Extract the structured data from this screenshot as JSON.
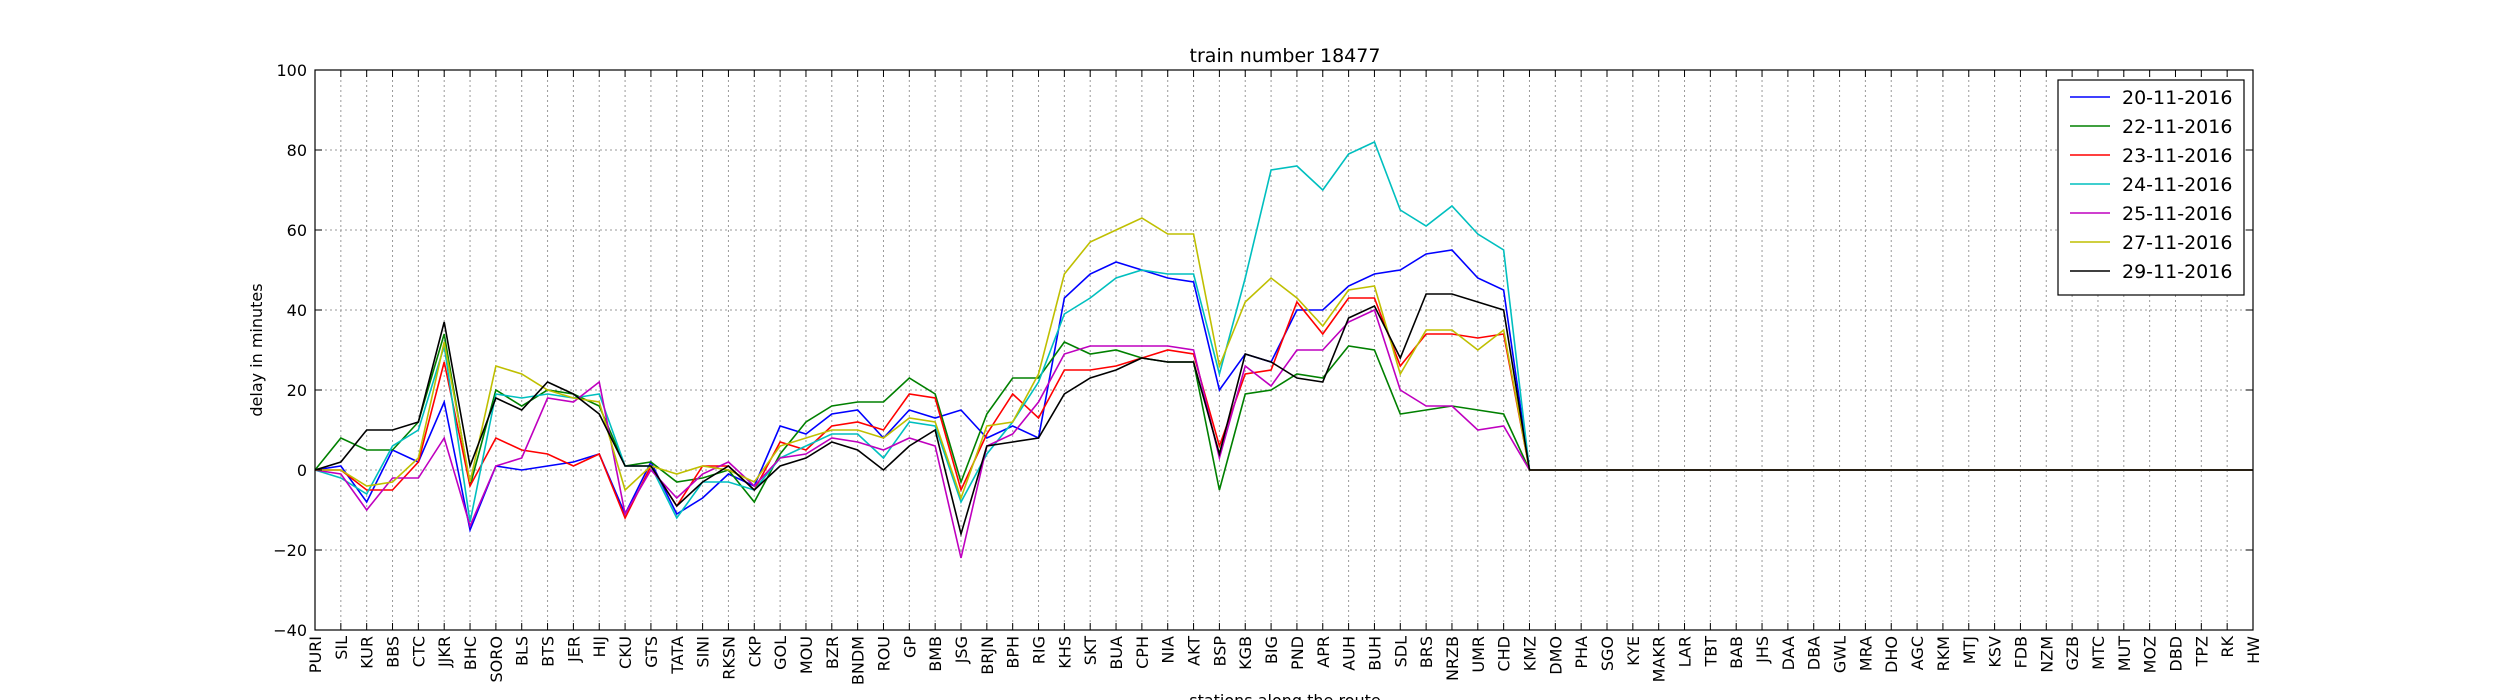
{
  "chart_data": {
    "type": "line",
    "title": "train number 18477",
    "xlabel": "stations along the route",
    "ylabel": "delay in minutes",
    "ylim": [
      -40,
      100
    ],
    "yticks": [
      -40,
      -20,
      0,
      20,
      40,
      60,
      80,
      100
    ],
    "grid": true,
    "legend_position": "top-right",
    "categories": [
      "PURI",
      "SIL",
      "KUR",
      "BBS",
      "CTC",
      "JJKR",
      "BHC",
      "SORO",
      "BLS",
      "BTS",
      "JER",
      "HIJ",
      "CKU",
      "GTS",
      "TATA",
      "SINI",
      "RKSN",
      "CKP",
      "GOL",
      "MOU",
      "BZR",
      "BNDM",
      "ROU",
      "GP",
      "BMB",
      "JSG",
      "BRJN",
      "BPH",
      "RIG",
      "KHS",
      "SKT",
      "BUA",
      "CPH",
      "NIA",
      "AKT",
      "BSP",
      "KGB",
      "BIG",
      "PND",
      "APR",
      "AUH",
      "BUH",
      "SDL",
      "BRS",
      "NRZB",
      "UMR",
      "CHD",
      "KMZ",
      "DMO",
      "PHA",
      "SGO",
      "KYE",
      "MAKR",
      "LAR",
      "TBT",
      "BAB",
      "JHS",
      "DAA",
      "DBA",
      "GWL",
      "MRA",
      "DHO",
      "AGC",
      "RKM",
      "MTJ",
      "KSV",
      "FDB",
      "NZM",
      "GZB",
      "MTC",
      "MUT",
      "MOZ",
      "DBD",
      "TPZ",
      "RK",
      "HW"
    ],
    "series": [
      {
        "name": "20-11-2016",
        "color": "#0000ff",
        "values": [
          0,
          1,
          -8,
          5,
          2,
          17,
          -15,
          1,
          0,
          1,
          2,
          4,
          -11,
          2,
          -11,
          -7,
          -1,
          -4,
          11,
          9,
          14,
          15,
          8,
          15,
          13,
          15,
          8,
          11,
          8,
          43,
          49,
          52,
          50,
          48,
          47,
          20,
          29,
          27,
          40,
          40,
          46,
          49,
          50,
          54,
          55,
          48,
          45,
          0,
          0,
          0,
          0,
          0,
          0,
          0,
          0,
          0,
          0,
          0,
          0,
          0,
          0,
          0,
          0,
          0,
          0,
          0,
          0,
          0,
          0,
          0,
          0,
          0,
          0,
          0,
          0,
          0
        ]
      },
      {
        "name": "22-11-2016",
        "color": "#008000",
        "values": [
          0,
          8,
          5,
          5,
          12,
          34,
          -4,
          20,
          16,
          20,
          19,
          16,
          1,
          2,
          -3,
          -2,
          0,
          -8,
          4,
          12,
          16,
          17,
          17,
          23,
          19,
          -3,
          14,
          23,
          23,
          32,
          29,
          30,
          28,
          27,
          27,
          -5,
          19,
          20,
          24,
          23,
          31,
          30,
          14,
          15,
          16,
          15,
          14,
          0,
          0,
          0,
          0,
          0,
          0,
          0,
          0,
          0,
          0,
          0,
          0,
          0,
          0,
          0,
          0,
          0,
          0,
          0,
          0,
          0,
          0,
          0,
          0,
          0,
          0,
          0,
          0,
          0
        ]
      },
      {
        "name": "23-11-2016",
        "color": "#ff0000",
        "values": [
          0,
          0,
          -5,
          -5,
          2,
          27,
          -4,
          8,
          5,
          4,
          1,
          4,
          -12,
          1,
          -9,
          1,
          1,
          -5,
          7,
          5,
          11,
          12,
          10,
          19,
          18,
          -5,
          9,
          19,
          13,
          25,
          25,
          26,
          28,
          30,
          29,
          6,
          24,
          25,
          42,
          34,
          43,
          43,
          26,
          34,
          34,
          33,
          34,
          0,
          0,
          0,
          0,
          0,
          0,
          0,
          0,
          0,
          0,
          0,
          0,
          0,
          0,
          0,
          0,
          0,
          0,
          0,
          0,
          0,
          0,
          0,
          0,
          0,
          0,
          0,
          0,
          0
        ]
      },
      {
        "name": "24-11-2016",
        "color": "#00bfbf",
        "values": [
          0,
          -2,
          -6,
          6,
          10,
          31,
          -13,
          19,
          18,
          19,
          18,
          19,
          1,
          1,
          -12,
          -3,
          -3,
          -5,
          3,
          6,
          9,
          9,
          3,
          12,
          11,
          -8,
          4,
          12,
          22,
          39,
          43,
          48,
          50,
          49,
          49,
          24,
          48,
          75,
          76,
          70,
          79,
          82,
          65,
          61,
          66,
          59,
          55,
          0,
          0,
          0,
          0,
          0,
          0,
          0,
          0,
          0,
          0,
          0,
          0,
          0,
          0,
          0,
          0,
          0,
          0,
          0,
          0,
          0,
          0,
          0,
          0,
          0,
          0,
          0,
          0,
          0
        ]
      },
      {
        "name": "25-11-2016",
        "color": "#bf00bf",
        "values": [
          0,
          -1,
          -10,
          -2,
          -2,
          8,
          -14,
          1,
          3,
          18,
          17,
          22,
          -11,
          0,
          -7,
          -1,
          2,
          -4,
          3,
          4,
          8,
          7,
          5,
          8,
          6,
          -22,
          6,
          9,
          17,
          29,
          31,
          31,
          31,
          31,
          30,
          3,
          26,
          21,
          30,
          30,
          37,
          40,
          20,
          16,
          16,
          10,
          11,
          0,
          0,
          0,
          0,
          0,
          0,
          0,
          0,
          0,
          0,
          0,
          0,
          0,
          0,
          0,
          0,
          0,
          0,
          0,
          0,
          0,
          0,
          0,
          0,
          0,
          0,
          0,
          0,
          0
        ]
      },
      {
        "name": "27-11-2016",
        "color": "#bfbf00",
        "values": [
          0,
          0,
          -4,
          -3,
          3,
          32,
          -3,
          26,
          24,
          20,
          18,
          17,
          -5,
          1,
          -1,
          1,
          0,
          -3,
          6,
          8,
          10,
          10,
          8,
          13,
          12,
          -7,
          11,
          12,
          24,
          49,
          57,
          60,
          63,
          59,
          59,
          26,
          42,
          48,
          43,
          36,
          45,
          46,
          24,
          35,
          35,
          30,
          35,
          0,
          0,
          0,
          0,
          0,
          0,
          0,
          0,
          0,
          0,
          0,
          0,
          0,
          0,
          0,
          0,
          0,
          0,
          0,
          0,
          0,
          0,
          0,
          0,
          0,
          0,
          0,
          0,
          0
        ]
      },
      {
        "name": "29-11-2016",
        "color": "#000000",
        "values": [
          0,
          2,
          10,
          10,
          12,
          37,
          1,
          18,
          15,
          22,
          19,
          14,
          1,
          1,
          -9,
          -3,
          1,
          -5,
          1,
          3,
          7,
          5,
          0,
          6,
          10,
          -16,
          6,
          7,
          8,
          19,
          23,
          25,
          28,
          27,
          27,
          4,
          29,
          27,
          23,
          22,
          38,
          41,
          28,
          44,
          44,
          42,
          40,
          0,
          0,
          0,
          0,
          0,
          0,
          0,
          0,
          0,
          0,
          0,
          0,
          0,
          0,
          0,
          0,
          0,
          0,
          0,
          0,
          0,
          0,
          0,
          0,
          0,
          0,
          0,
          0,
          0
        ]
      }
    ]
  }
}
